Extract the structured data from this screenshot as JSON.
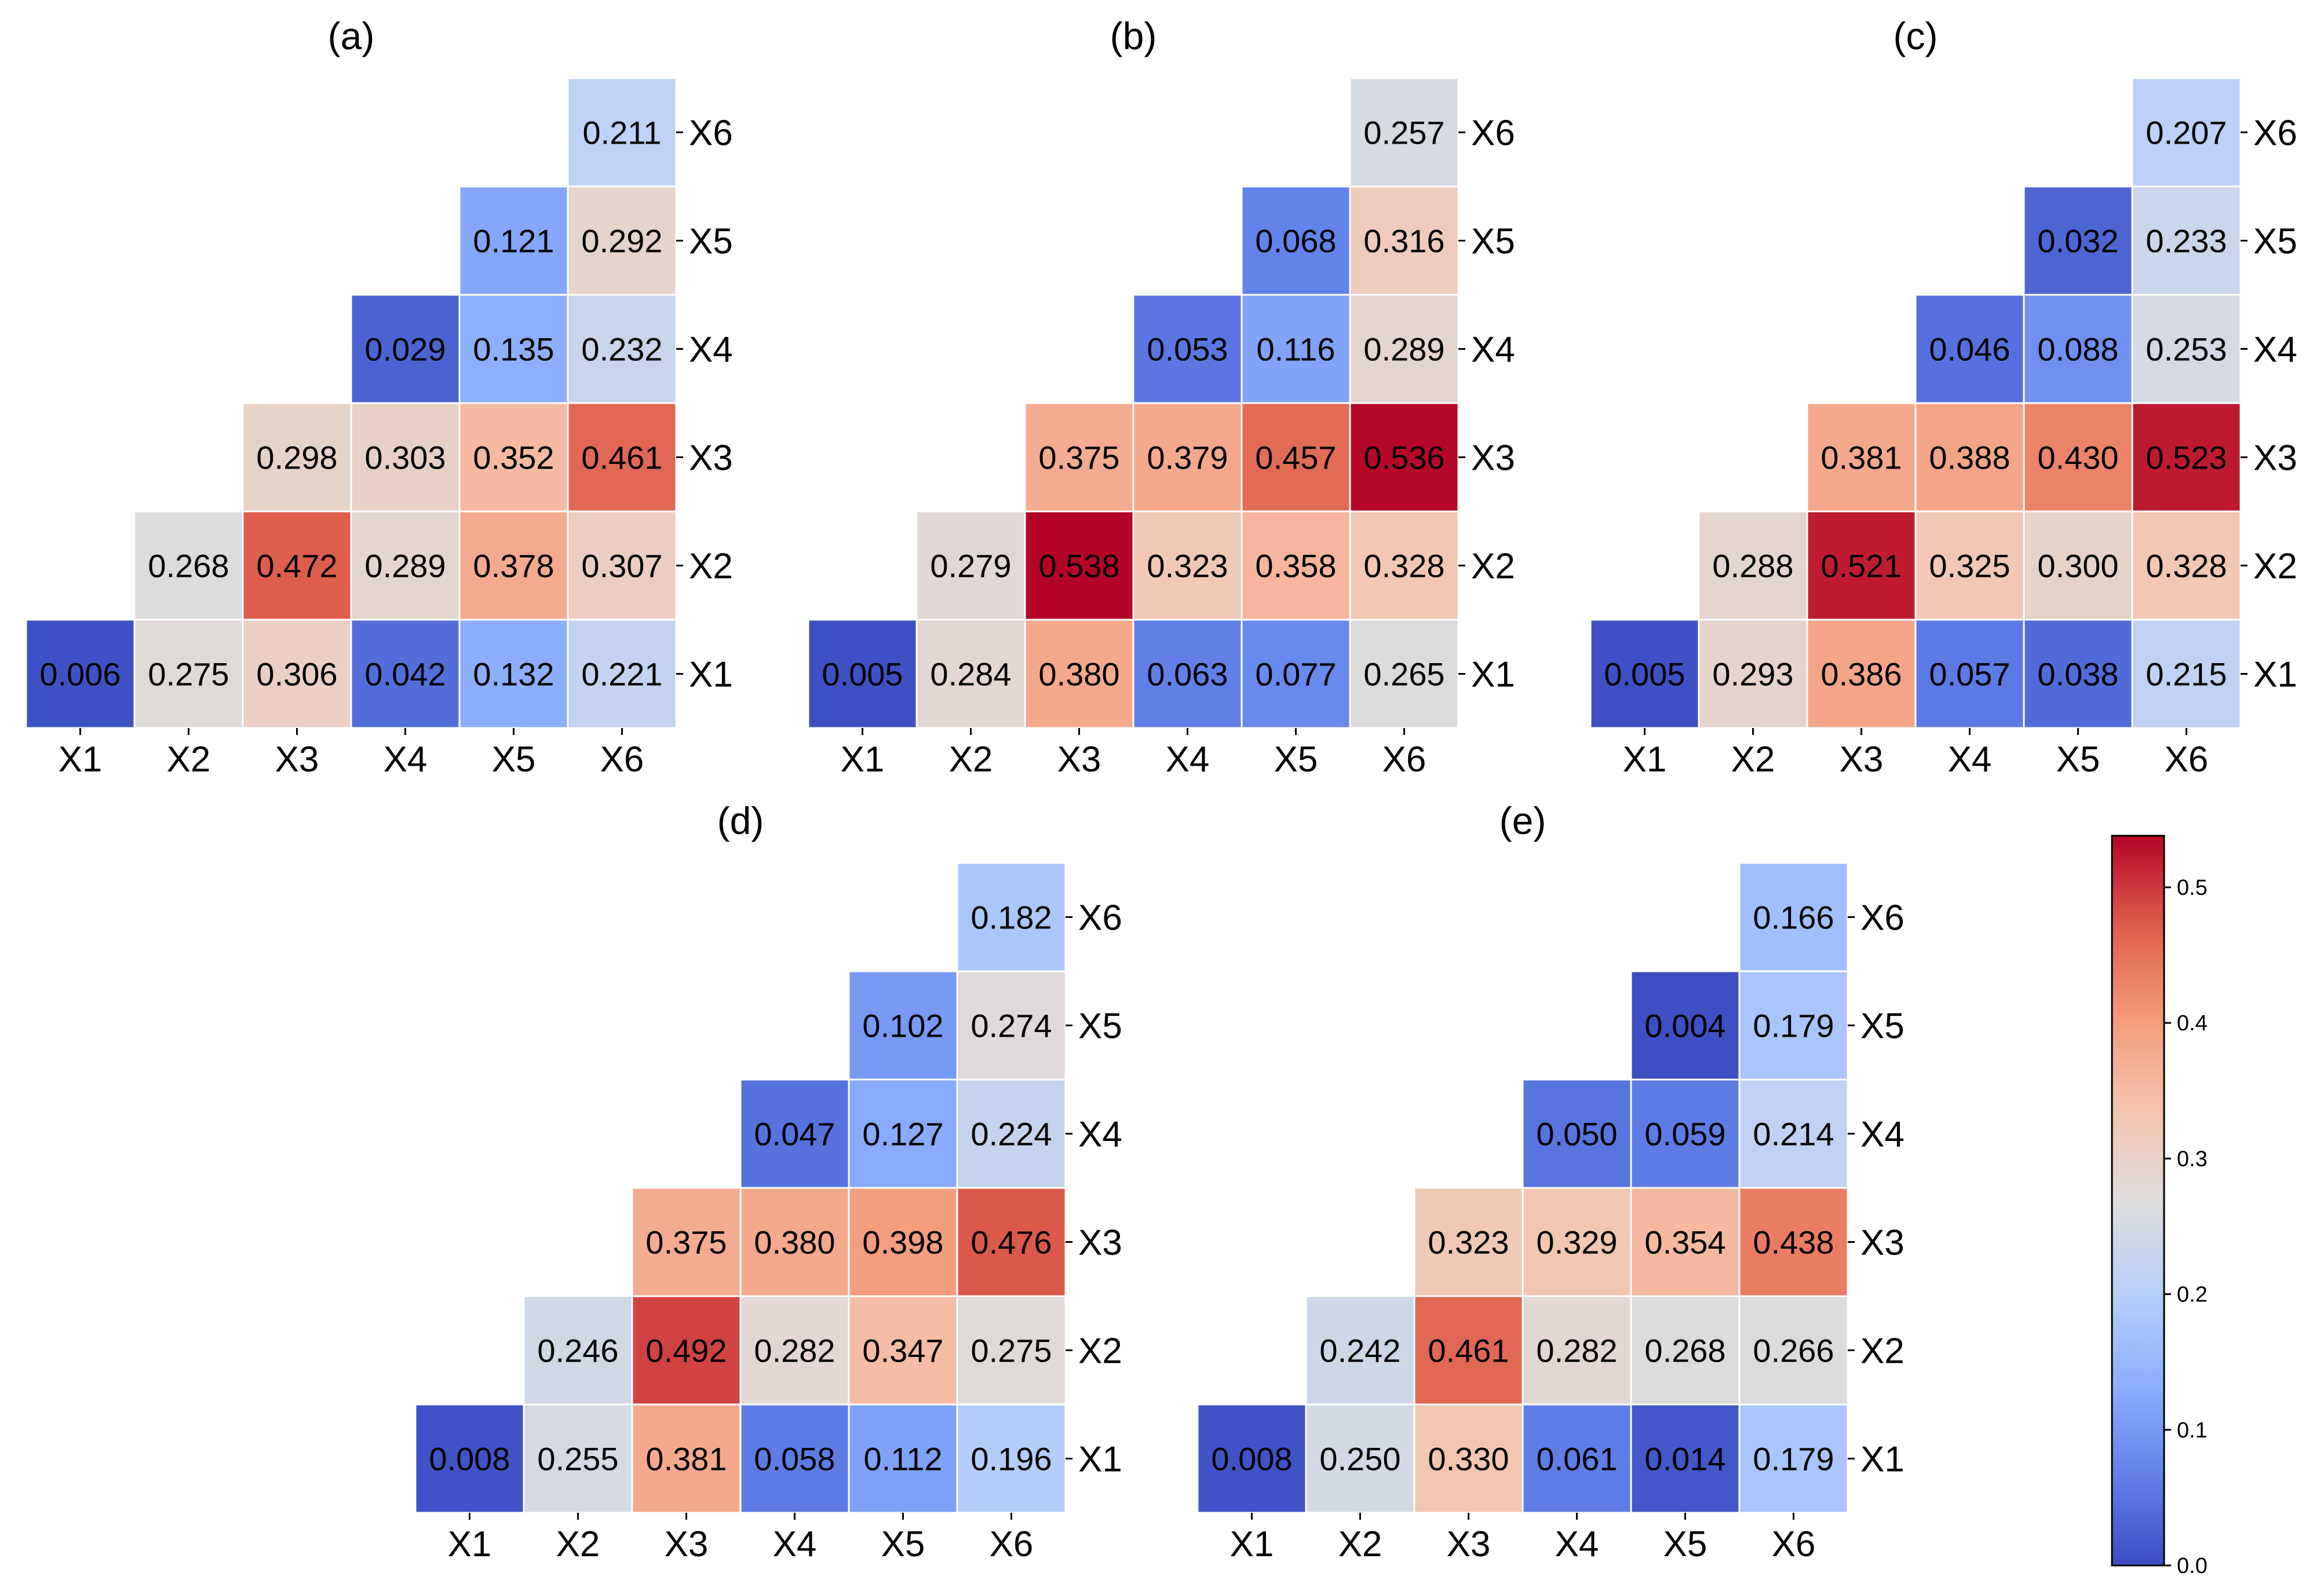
{
  "chart_data": [
    {
      "type": "heatmap",
      "title": "(a)",
      "x_labels": [
        "X1",
        "X2",
        "X3",
        "X4",
        "X5",
        "X6"
      ],
      "y_labels": [
        "X1",
        "X2",
        "X3",
        "X4",
        "X5",
        "X6"
      ],
      "layout": "lower-triangle, X1 at bottom row, X6 at top row",
      "rows": [
        {
          "y": "X6",
          "cells": [
            {
              "x": "X6",
              "value": 0.211
            }
          ]
        },
        {
          "y": "X5",
          "cells": [
            {
              "x": "X5",
              "value": 0.121
            },
            {
              "x": "X6",
              "value": 0.292
            }
          ]
        },
        {
          "y": "X4",
          "cells": [
            {
              "x": "X4",
              "value": 0.029
            },
            {
              "x": "X5",
              "value": 0.135
            },
            {
              "x": "X6",
              "value": 0.232
            }
          ]
        },
        {
          "y": "X3",
          "cells": [
            {
              "x": "X3",
              "value": 0.298
            },
            {
              "x": "X4",
              "value": 0.303
            },
            {
              "x": "X5",
              "value": 0.352
            },
            {
              "x": "X6",
              "value": 0.461
            }
          ]
        },
        {
          "y": "X2",
          "cells": [
            {
              "x": "X2",
              "value": 0.268
            },
            {
              "x": "X3",
              "value": 0.472
            },
            {
              "x": "X4",
              "value": 0.289
            },
            {
              "x": "X5",
              "value": 0.378
            },
            {
              "x": "X6",
              "value": 0.307
            }
          ]
        },
        {
          "y": "X1",
          "cells": [
            {
              "x": "X1",
              "value": 0.006
            },
            {
              "x": "X2",
              "value": 0.275
            },
            {
              "x": "X3",
              "value": 0.306
            },
            {
              "x": "X4",
              "value": 0.042
            },
            {
              "x": "X5",
              "value": 0.132
            },
            {
              "x": "X6",
              "value": 0.221
            }
          ]
        }
      ]
    },
    {
      "type": "heatmap",
      "title": "(b)",
      "x_labels": [
        "X1",
        "X2",
        "X3",
        "X4",
        "X5",
        "X6"
      ],
      "y_labels": [
        "X1",
        "X2",
        "X3",
        "X4",
        "X5",
        "X6"
      ],
      "layout": "lower-triangle, X1 at bottom row, X6 at top row",
      "rows": [
        {
          "y": "X6",
          "cells": [
            {
              "x": "X6",
              "value": 0.257
            }
          ]
        },
        {
          "y": "X5",
          "cells": [
            {
              "x": "X5",
              "value": 0.068
            },
            {
              "x": "X6",
              "value": 0.316
            }
          ]
        },
        {
          "y": "X4",
          "cells": [
            {
              "x": "X4",
              "value": 0.053
            },
            {
              "x": "X5",
              "value": 0.116
            },
            {
              "x": "X6",
              "value": 0.289
            }
          ]
        },
        {
          "y": "X3",
          "cells": [
            {
              "x": "X3",
              "value": 0.375
            },
            {
              "x": "X4",
              "value": 0.379
            },
            {
              "x": "X5",
              "value": 0.457
            },
            {
              "x": "X6",
              "value": 0.536
            }
          ]
        },
        {
          "y": "X2",
          "cells": [
            {
              "x": "X2",
              "value": 0.279
            },
            {
              "x": "X3",
              "value": 0.538
            },
            {
              "x": "X4",
              "value": 0.323
            },
            {
              "x": "X5",
              "value": 0.358
            },
            {
              "x": "X6",
              "value": 0.328
            }
          ]
        },
        {
          "y": "X1",
          "cells": [
            {
              "x": "X1",
              "value": 0.005
            },
            {
              "x": "X2",
              "value": 0.284
            },
            {
              "x": "X3",
              "value": 0.38
            },
            {
              "x": "X4",
              "value": 0.063
            },
            {
              "x": "X5",
              "value": 0.077
            },
            {
              "x": "X6",
              "value": 0.265
            }
          ]
        }
      ]
    },
    {
      "type": "heatmap",
      "title": "(c)",
      "x_labels": [
        "X1",
        "X2",
        "X3",
        "X4",
        "X5",
        "X6"
      ],
      "y_labels": [
        "X1",
        "X2",
        "X3",
        "X4",
        "X5",
        "X6"
      ],
      "layout": "lower-triangle, X1 at bottom row, X6 at top row",
      "rows": [
        {
          "y": "X6",
          "cells": [
            {
              "x": "X6",
              "value": 0.207
            }
          ]
        },
        {
          "y": "X5",
          "cells": [
            {
              "x": "X5",
              "value": 0.032
            },
            {
              "x": "X6",
              "value": 0.233
            }
          ]
        },
        {
          "y": "X4",
          "cells": [
            {
              "x": "X4",
              "value": 0.046
            },
            {
              "x": "X5",
              "value": 0.088
            },
            {
              "x": "X6",
              "value": 0.253
            }
          ]
        },
        {
          "y": "X3",
          "cells": [
            {
              "x": "X3",
              "value": 0.381
            },
            {
              "x": "X4",
              "value": 0.388
            },
            {
              "x": "X5",
              "value": 0.43
            },
            {
              "x": "X6",
              "value": 0.523
            }
          ]
        },
        {
          "y": "X2",
          "cells": [
            {
              "x": "X2",
              "value": 0.288
            },
            {
              "x": "X3",
              "value": 0.521
            },
            {
              "x": "X4",
              "value": 0.325
            },
            {
              "x": "X5",
              "value": 0.3
            },
            {
              "x": "X6",
              "value": 0.328
            }
          ]
        },
        {
          "y": "X1",
          "cells": [
            {
              "x": "X1",
              "value": 0.005
            },
            {
              "x": "X2",
              "value": 0.293
            },
            {
              "x": "X3",
              "value": 0.386
            },
            {
              "x": "X4",
              "value": 0.057
            },
            {
              "x": "X5",
              "value": 0.038
            },
            {
              "x": "X6",
              "value": 0.215
            }
          ]
        }
      ]
    },
    {
      "type": "heatmap",
      "title": "(d)",
      "x_labels": [
        "X1",
        "X2",
        "X3",
        "X4",
        "X5",
        "X6"
      ],
      "y_labels": [
        "X1",
        "X2",
        "X3",
        "X4",
        "X5",
        "X6"
      ],
      "layout": "lower-triangle, X1 at bottom row, X6 at top row",
      "rows": [
        {
          "y": "X6",
          "cells": [
            {
              "x": "X6",
              "value": 0.182
            }
          ]
        },
        {
          "y": "X5",
          "cells": [
            {
              "x": "X5",
              "value": 0.102
            },
            {
              "x": "X6",
              "value": 0.274
            }
          ]
        },
        {
          "y": "X4",
          "cells": [
            {
              "x": "X4",
              "value": 0.047
            },
            {
              "x": "X5",
              "value": 0.127
            },
            {
              "x": "X6",
              "value": 0.224
            }
          ]
        },
        {
          "y": "X3",
          "cells": [
            {
              "x": "X3",
              "value": 0.375
            },
            {
              "x": "X4",
              "value": 0.38
            },
            {
              "x": "X5",
              "value": 0.398
            },
            {
              "x": "X6",
              "value": 0.476
            }
          ]
        },
        {
          "y": "X2",
          "cells": [
            {
              "x": "X2",
              "value": 0.246
            },
            {
              "x": "X3",
              "value": 0.492
            },
            {
              "x": "X4",
              "value": 0.282
            },
            {
              "x": "X5",
              "value": 0.347
            },
            {
              "x": "X6",
              "value": 0.275
            }
          ]
        },
        {
          "y": "X1",
          "cells": [
            {
              "x": "X1",
              "value": 0.008
            },
            {
              "x": "X2",
              "value": 0.255
            },
            {
              "x": "X3",
              "value": 0.381
            },
            {
              "x": "X4",
              "value": 0.058
            },
            {
              "x": "X5",
              "value": 0.112
            },
            {
              "x": "X6",
              "value": 0.196
            }
          ]
        }
      ]
    },
    {
      "type": "heatmap",
      "title": "(e)",
      "x_labels": [
        "X1",
        "X2",
        "X3",
        "X4",
        "X5",
        "X6"
      ],
      "y_labels": [
        "X1",
        "X2",
        "X3",
        "X4",
        "X5",
        "X6"
      ],
      "layout": "lower-triangle, X1 at bottom row, X6 at top row",
      "rows": [
        {
          "y": "X6",
          "cells": [
            {
              "x": "X6",
              "value": 0.166
            }
          ]
        },
        {
          "y": "X5",
          "cells": [
            {
              "x": "X5",
              "value": 0.004
            },
            {
              "x": "X6",
              "value": 0.179
            }
          ]
        },
        {
          "y": "X4",
          "cells": [
            {
              "x": "X4",
              "value": 0.05
            },
            {
              "x": "X5",
              "value": 0.059
            },
            {
              "x": "X6",
              "value": 0.214
            }
          ]
        },
        {
          "y": "X3",
          "cells": [
            {
              "x": "X3",
              "value": 0.323
            },
            {
              "x": "X4",
              "value": 0.329
            },
            {
              "x": "X5",
              "value": 0.354
            },
            {
              "x": "X6",
              "value": 0.438
            }
          ]
        },
        {
          "y": "X2",
          "cells": [
            {
              "x": "X2",
              "value": 0.242
            },
            {
              "x": "X3",
              "value": 0.461
            },
            {
              "x": "X4",
              "value": 0.282
            },
            {
              "x": "X5",
              "value": 0.268
            },
            {
              "x": "X6",
              "value": 0.266
            }
          ]
        },
        {
          "y": "X1",
          "cells": [
            {
              "x": "X1",
              "value": 0.008
            },
            {
              "x": "X2",
              "value": 0.25
            },
            {
              "x": "X3",
              "value": 0.33
            },
            {
              "x": "X4",
              "value": 0.061
            },
            {
              "x": "X5",
              "value": 0.014
            },
            {
              "x": "X6",
              "value": 0.179
            }
          ]
        }
      ]
    }
  ],
  "colorbar": {
    "colormap": "coolwarm",
    "range": [
      0.0,
      0.538
    ],
    "ticks": [
      0.0,
      0.1,
      0.2,
      0.3,
      0.4,
      0.5
    ],
    "tick_labels": [
      "0.0",
      "0.1",
      "0.2",
      "0.3",
      "0.4",
      "0.5"
    ],
    "placement": "right of panel (e)",
    "colors": {
      "low": "#3b4cc0",
      "mid": "#dddcdc",
      "high": "#b40426"
    }
  },
  "colors": {
    "cell_border": "#ffffff",
    "text": "#000000",
    "background": "#ffffff"
  }
}
